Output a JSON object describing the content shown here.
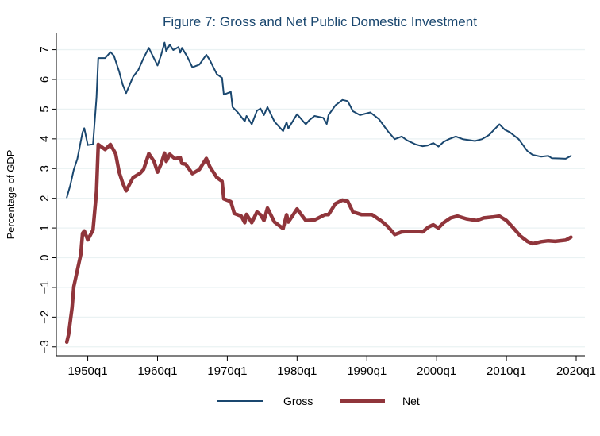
{
  "chart_data": {
    "type": "line",
    "title": "Figure 7: Gross and Net Public Domestic Investment",
    "xlabel": "",
    "ylabel": "Percentage of GDP",
    "xlim": [
      "1945q3",
      "2021q2"
    ],
    "ylim": [
      -3.3,
      7.55
    ],
    "x_ticks": [
      "1950q1",
      "1960q1",
      "1970q1",
      "1980q1",
      "1990q1",
      "2000q1",
      "2010q1",
      "2020q1"
    ],
    "y_ticks": [
      -3,
      -2,
      -1,
      0,
      1,
      2,
      3,
      4,
      5,
      6,
      7
    ],
    "y_tick_labels": [
      "−3",
      "−2",
      "−1",
      "0",
      "1",
      "2",
      "3",
      "4",
      "5",
      "6",
      "7"
    ],
    "grid": "horizontal",
    "legend_position": "bottom",
    "series": [
      {
        "name": "Gross",
        "color": "#1a476f",
        "points": [
          [
            "1947q1",
            2.03
          ],
          [
            "1947q3",
            2.44
          ],
          [
            "1948q1",
            2.97
          ],
          [
            "1948q3",
            3.32
          ],
          [
            "1949q2",
            4.22
          ],
          [
            "1949q3",
            4.36
          ],
          [
            "1950q1",
            3.79
          ],
          [
            "1950q4",
            3.82
          ],
          [
            "1951q2",
            5.39
          ],
          [
            "1951q3",
            6.72
          ],
          [
            "1952q3",
            6.72
          ],
          [
            "1953q2",
            6.92
          ],
          [
            "1953q4",
            6.8
          ],
          [
            "1954q3",
            6.27
          ],
          [
            "1955q1",
            5.83
          ],
          [
            "1955q3",
            5.54
          ],
          [
            "1956q3",
            6.09
          ],
          [
            "1957q2",
            6.32
          ],
          [
            "1958q1",
            6.72
          ],
          [
            "1958q4",
            7.06
          ],
          [
            "1960q1",
            6.47
          ],
          [
            "1960q3",
            6.81
          ],
          [
            "1961q1",
            7.24
          ],
          [
            "1961q2",
            6.95
          ],
          [
            "1961q4",
            7.17
          ],
          [
            "1962q2",
            6.99
          ],
          [
            "1963q1",
            7.09
          ],
          [
            "1963q2",
            6.9
          ],
          [
            "1963q3",
            7.06
          ],
          [
            "1964q2",
            6.77
          ],
          [
            "1965q1",
            6.41
          ],
          [
            "1966q1",
            6.5
          ],
          [
            "1967q1",
            6.83
          ],
          [
            "1967q3",
            6.65
          ],
          [
            "1968q3",
            6.18
          ],
          [
            "1969q2",
            6.05
          ],
          [
            "1969q3",
            5.49
          ],
          [
            "1970q3",
            5.58
          ],
          [
            "1970q4",
            5.07
          ],
          [
            "1971q3",
            4.89
          ],
          [
            "1972q3",
            4.59
          ],
          [
            "1972q4",
            4.77
          ],
          [
            "1973q3",
            4.49
          ],
          [
            "1974q2",
            4.95
          ],
          [
            "1974q4",
            5.02
          ],
          [
            "1975q2",
            4.8
          ],
          [
            "1975q4",
            5.07
          ],
          [
            "1976q4",
            4.58
          ],
          [
            "1978q1",
            4.26
          ],
          [
            "1978q3",
            4.56
          ],
          [
            "1978q4",
            4.35
          ],
          [
            "1980q1",
            4.83
          ],
          [
            "1981q2",
            4.49
          ],
          [
            "1981q4",
            4.63
          ],
          [
            "1982q3",
            4.77
          ],
          [
            "1983q4",
            4.71
          ],
          [
            "1984q2",
            4.5
          ],
          [
            "1984q3",
            4.8
          ],
          [
            "1985q3",
            5.13
          ],
          [
            "1986q3",
            5.31
          ],
          [
            "1987q2",
            5.27
          ],
          [
            "1988q1",
            4.93
          ],
          [
            "1989q1",
            4.8
          ],
          [
            "1990q3",
            4.89
          ],
          [
            "1991q4",
            4.66
          ],
          [
            "1993q1",
            4.26
          ],
          [
            "1994q1",
            3.99
          ],
          [
            "1995q1",
            4.08
          ],
          [
            "1995q4",
            3.95
          ],
          [
            "1997q1",
            3.81
          ],
          [
            "1998q1",
            3.75
          ],
          [
            "1998q4",
            3.78
          ],
          [
            "1999q3",
            3.86
          ],
          [
            "2000q2",
            3.74
          ],
          [
            "2001q1",
            3.9
          ],
          [
            "2001q4",
            3.99
          ],
          [
            "2002q4",
            4.08
          ],
          [
            "2003q4",
            3.99
          ],
          [
            "2005q3",
            3.93
          ],
          [
            "2006q3",
            3.99
          ],
          [
            "2007q3",
            4.13
          ],
          [
            "2008q2",
            4.31
          ],
          [
            "2009q1",
            4.49
          ],
          [
            "2009q4",
            4.31
          ],
          [
            "2010q3",
            4.22
          ],
          [
            "2011q4",
            3.99
          ],
          [
            "2013q1",
            3.59
          ],
          [
            "2013q4",
            3.46
          ],
          [
            "2015q1",
            3.4
          ],
          [
            "2016q1",
            3.43
          ],
          [
            "2016q3",
            3.35
          ],
          [
            "2017q3",
            3.34
          ],
          [
            "2018q3",
            3.33
          ],
          [
            "2019q2",
            3.43
          ]
        ]
      },
      {
        "name": "Net",
        "color": "#90353b",
        "points": [
          [
            "1947q1",
            -2.84
          ],
          [
            "1947q2",
            -2.59
          ],
          [
            "1947q4",
            -1.68
          ],
          [
            "1948q1",
            -0.97
          ],
          [
            "1948q3",
            -0.43
          ],
          [
            "1949q1",
            0.11
          ],
          [
            "1949q2",
            0.82
          ],
          [
            "1949q3",
            0.9
          ],
          [
            "1950q1",
            0.6
          ],
          [
            "1950q4",
            0.93
          ],
          [
            "1951q2",
            2.23
          ],
          [
            "1951q3",
            3.81
          ],
          [
            "1952q3",
            3.64
          ],
          [
            "1953q2",
            3.81
          ],
          [
            "1954q1",
            3.5
          ],
          [
            "1954q3",
            2.88
          ],
          [
            "1955q1",
            2.52
          ],
          [
            "1955q3",
            2.25
          ],
          [
            "1956q3",
            2.7
          ],
          [
            "1957q3",
            2.84
          ],
          [
            "1958q1",
            2.97
          ],
          [
            "1958q4",
            3.5
          ],
          [
            "1959q3",
            3.24
          ],
          [
            "1960q1",
            2.88
          ],
          [
            "1960q3",
            3.15
          ],
          [
            "1961q1",
            3.52
          ],
          [
            "1961q2",
            3.24
          ],
          [
            "1961q4",
            3.48
          ],
          [
            "1962q3",
            3.33
          ],
          [
            "1963q2",
            3.37
          ],
          [
            "1963q3",
            3.17
          ],
          [
            "1964q1",
            3.15
          ],
          [
            "1965q1",
            2.83
          ],
          [
            "1966q1",
            2.97
          ],
          [
            "1967q1",
            3.34
          ],
          [
            "1967q3",
            3.06
          ],
          [
            "1968q3",
            2.7
          ],
          [
            "1969q2",
            2.57
          ],
          [
            "1969q3",
            1.98
          ],
          [
            "1970q3",
            1.89
          ],
          [
            "1971q1",
            1.49
          ],
          [
            "1972q1",
            1.4
          ],
          [
            "1972q3",
            1.18
          ],
          [
            "1972q4",
            1.46
          ],
          [
            "1973q3",
            1.18
          ],
          [
            "1974q2",
            1.54
          ],
          [
            "1974q4",
            1.45
          ],
          [
            "1975q2",
            1.25
          ],
          [
            "1975q4",
            1.67
          ],
          [
            "1976q4",
            1.2
          ],
          [
            "1978q1",
            0.98
          ],
          [
            "1978q3",
            1.45
          ],
          [
            "1978q4",
            1.2
          ],
          [
            "1980q1",
            1.64
          ],
          [
            "1981q2",
            1.25
          ],
          [
            "1982q3",
            1.27
          ],
          [
            "1984q1",
            1.45
          ],
          [
            "1984q3",
            1.45
          ],
          [
            "1985q3",
            1.82
          ],
          [
            "1986q3",
            1.94
          ],
          [
            "1987q2",
            1.9
          ],
          [
            "1988q1",
            1.54
          ],
          [
            "1989q2",
            1.45
          ],
          [
            "1990q4",
            1.45
          ],
          [
            "1992q1",
            1.25
          ],
          [
            "1993q1",
            1.05
          ],
          [
            "1994q1",
            0.78
          ],
          [
            "1995q1",
            0.87
          ],
          [
            "1996q3",
            0.89
          ],
          [
            "1998q1",
            0.87
          ],
          [
            "1998q4",
            1.02
          ],
          [
            "1999q3",
            1.11
          ],
          [
            "2000q2",
            1.0
          ],
          [
            "2001q1",
            1.18
          ],
          [
            "2002q1",
            1.34
          ],
          [
            "2003q1",
            1.4
          ],
          [
            "2004q2",
            1.31
          ],
          [
            "2005q4",
            1.25
          ],
          [
            "2006q4",
            1.34
          ],
          [
            "2008q1",
            1.37
          ],
          [
            "2009q1",
            1.4
          ],
          [
            "2010q1",
            1.25
          ],
          [
            "2011q1",
            1.0
          ],
          [
            "2012q1",
            0.73
          ],
          [
            "2013q1",
            0.55
          ],
          [
            "2013q4",
            0.47
          ],
          [
            "2015q1",
            0.54
          ],
          [
            "2016q1",
            0.57
          ],
          [
            "2017q1",
            0.55
          ],
          [
            "2018q3",
            0.59
          ],
          [
            "2019q2",
            0.69
          ]
        ]
      }
    ]
  }
}
